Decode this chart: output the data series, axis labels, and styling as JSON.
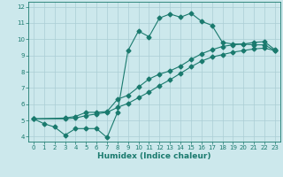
{
  "xlabel": "Humidex (Indice chaleur)",
  "xlim": [
    -0.5,
    23.5
  ],
  "ylim": [
    3.7,
    12.3
  ],
  "xticks": [
    0,
    1,
    2,
    3,
    4,
    5,
    6,
    7,
    8,
    9,
    10,
    11,
    12,
    13,
    14,
    15,
    16,
    17,
    18,
    19,
    20,
    21,
    22,
    23
  ],
  "yticks": [
    4,
    5,
    6,
    7,
    8,
    9,
    10,
    11,
    12
  ],
  "bg_color": "#cce8ec",
  "line_color": "#1a7a6e",
  "grid_color": "#aacdd4",
  "line1_x": [
    0,
    1,
    2,
    3,
    4,
    5,
    6,
    7,
    8,
    9,
    10,
    11,
    12,
    13,
    14,
    15,
    16,
    17,
    18,
    19,
    20,
    21,
    22,
    23
  ],
  "line1_y": [
    5.1,
    4.8,
    4.6,
    4.1,
    4.5,
    4.5,
    4.5,
    3.95,
    5.5,
    9.3,
    10.5,
    10.15,
    11.3,
    11.55,
    11.35,
    11.6,
    11.1,
    10.85,
    9.8,
    9.7,
    9.7,
    9.65,
    9.65,
    9.3
  ],
  "line2_x": [
    0,
    3,
    4,
    5,
    6,
    7,
    8,
    9,
    10,
    11,
    12,
    13,
    14,
    15,
    16,
    17,
    18,
    19,
    20,
    21,
    22,
    23
  ],
  "line2_y": [
    5.1,
    5.15,
    5.25,
    5.5,
    5.5,
    5.55,
    6.3,
    6.55,
    7.05,
    7.55,
    7.85,
    8.05,
    8.35,
    8.75,
    9.1,
    9.35,
    9.55,
    9.65,
    9.7,
    9.8,
    9.85,
    9.35
  ],
  "line3_x": [
    0,
    3,
    4,
    5,
    6,
    7,
    8,
    9,
    10,
    11,
    12,
    13,
    14,
    15,
    16,
    17,
    18,
    19,
    20,
    21,
    22,
    23
  ],
  "line3_y": [
    5.1,
    5.1,
    5.15,
    5.3,
    5.4,
    5.5,
    5.8,
    6.05,
    6.4,
    6.75,
    7.15,
    7.5,
    7.9,
    8.3,
    8.65,
    8.9,
    9.05,
    9.2,
    9.3,
    9.4,
    9.45,
    9.3
  ],
  "markersize": 2.5,
  "linewidth": 0.8,
  "tick_fontsize": 5.0,
  "xlabel_fontsize": 6.5
}
